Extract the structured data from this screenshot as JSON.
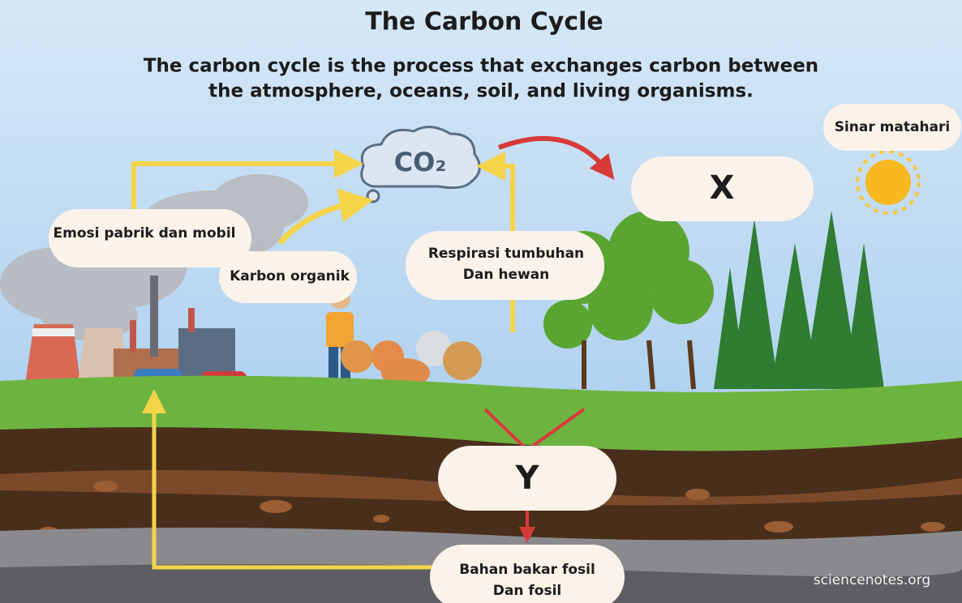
{
  "header": {
    "title": "The Carbon Cycle",
    "subtitle": [
      "The carbon cycle is the process that exchanges carbon between",
      "the atmosphere, oceans, soil, and living organisms."
    ]
  },
  "nodes": [
    {
      "lines": [
        "CO₂"
      ]
    },
    {
      "lines": [
        "Sinar matahari"
      ]
    },
    {
      "lines": [
        "X"
      ]
    },
    {
      "lines": [
        "Emosi pabrik dan mobil"
      ]
    },
    {
      "lines": [
        "Karbon organik"
      ]
    },
    {
      "lines": [
        "Respirasi tumbuhan",
        "Dan hewan"
      ]
    },
    {
      "lines": [
        "Y"
      ]
    },
    {
      "lines": [
        "Bahan bakar fosil",
        "Dan fosil"
      ]
    }
  ],
  "watermark": "sciencenotes.org"
}
